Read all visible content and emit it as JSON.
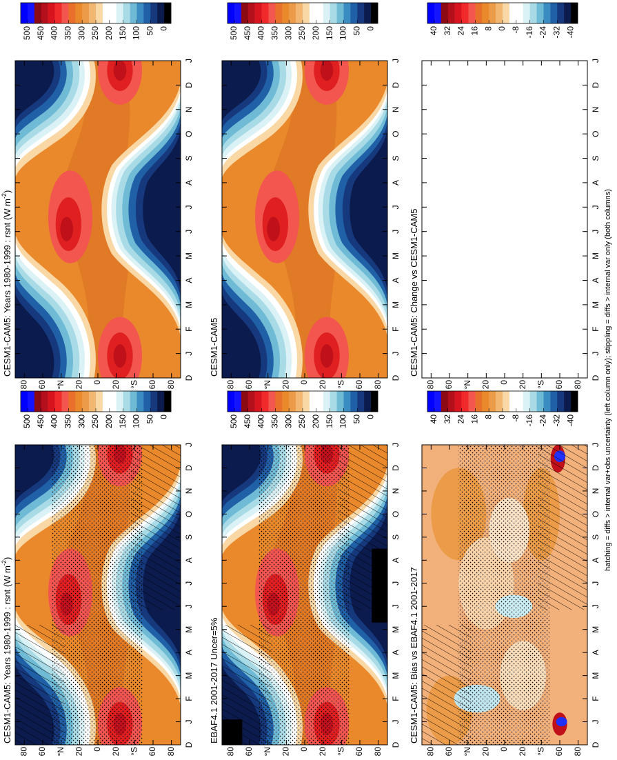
{
  "footnote": "hatching = diffs > internal var+obs uncertainty (left column only); stippling = diffs > internal var only (both columns)",
  "colors": [
    "#0000ff",
    "#1414ff",
    "#8b0a14",
    "#b3101c",
    "#d8151f",
    "#f02a2a",
    "#f2564e",
    "#e8702a",
    "#e9892c",
    "#ec9c48",
    "#f2b872",
    "#f9d8a6",
    "#ffffff",
    "#ffffff",
    "#daf1f6",
    "#a9dbe7",
    "#6fbbd6",
    "#3b8cc1",
    "#2060a6",
    "#16397e",
    "#0c1b4e",
    "#000000"
  ],
  "chart_data": [
    {
      "type": "contour",
      "title": "CESM1-CAM5: Years 1980-1999 : rsnt (W m",
      "title_sup": "-2",
      "title_end": ")",
      "hatching": true,
      "categories": [
        "D",
        "J",
        "F",
        "M",
        "A",
        "M",
        "J",
        "J",
        "A",
        "S",
        "O",
        "N",
        "D",
        "J"
      ],
      "ylim": [
        -90,
        90
      ],
      "yticks": [
        80,
        60,
        {
          "value": 40,
          "label": "°N"
        },
        20,
        0,
        {
          "value": -20,
          "label": "20"
        },
        {
          "value": -40,
          "label": "°S"
        },
        {
          "value": -60,
          "label": "60"
        },
        {
          "value": -80,
          "label": "80"
        }
      ],
      "colorbar": [
        500,
        450,
        400,
        350,
        300,
        250,
        200,
        150,
        100,
        50,
        0
      ]
    },
    {
      "type": "contour",
      "title": "CESM1-CAM5: Years 1980-1999 : rsnt (W m",
      "title_sup": "-2",
      "title_end": ")",
      "hatching": false,
      "categories": [
        "D",
        "J",
        "F",
        "M",
        "A",
        "M",
        "J",
        "J",
        "A",
        "S",
        "O",
        "N",
        "D",
        "J"
      ],
      "ylim": [
        -90,
        90
      ],
      "yticks": [
        80,
        60,
        {
          "value": 40,
          "label": "°N"
        },
        20,
        0,
        {
          "value": -20,
          "label": "20"
        },
        {
          "value": -40,
          "label": "°S"
        },
        {
          "value": -60,
          "label": "60"
        },
        {
          "value": -80,
          "label": "80"
        }
      ],
      "colorbar": [
        500,
        450,
        400,
        350,
        300,
        250,
        200,
        150,
        100,
        50,
        0
      ]
    },
    {
      "type": "contour",
      "title": "EBAF4.1 2001-2017 Uncer=5%",
      "hatching": true,
      "categories": [
        "D",
        "J",
        "F",
        "M",
        "A",
        "M",
        "J",
        "J",
        "A",
        "S",
        "O",
        "N",
        "D",
        "J"
      ],
      "ylim": [
        -90,
        90
      ],
      "yticks": [
        80,
        60,
        {
          "value": 40,
          "label": "°N"
        },
        20,
        0,
        {
          "value": -20,
          "label": "20"
        },
        {
          "value": -40,
          "label": "°S"
        },
        {
          "value": -60,
          "label": "60"
        },
        {
          "value": -80,
          "label": "80"
        }
      ],
      "colorbar": [
        500,
        450,
        400,
        350,
        300,
        250,
        200,
        150,
        100,
        50,
        0
      ]
    },
    {
      "type": "contour",
      "title": "CESM1-CAM5",
      "hatching": false,
      "categories": [
        "D",
        "J",
        "F",
        "M",
        "A",
        "M",
        "J",
        "J",
        "A",
        "S",
        "O",
        "N",
        "D",
        "J"
      ],
      "ylim": [
        -90,
        90
      ],
      "yticks": [
        80,
        60,
        {
          "value": 40,
          "label": "°N"
        },
        20,
        0,
        {
          "value": -20,
          "label": "20"
        },
        {
          "value": -40,
          "label": "°S"
        },
        {
          "value": -60,
          "label": "60"
        },
        {
          "value": -80,
          "label": "80"
        }
      ],
      "colorbar": [
        500,
        450,
        400,
        350,
        300,
        250,
        200,
        150,
        100,
        50,
        0
      ]
    },
    {
      "type": "contour",
      "title": "CESM1-CAM5: Bias vs EBAF4.1 2001-2017",
      "hatching": true,
      "categories": [
        "D",
        "J",
        "F",
        "M",
        "A",
        "M",
        "J",
        "J",
        "A",
        "S",
        "O",
        "N",
        "D",
        "J"
      ],
      "ylim": [
        -90,
        90
      ],
      "yticks": [
        80,
        60,
        {
          "value": 40,
          "label": "°N"
        },
        20,
        0,
        {
          "value": -20,
          "label": "20"
        },
        {
          "value": -40,
          "label": "°S"
        },
        {
          "value": -60,
          "label": "60"
        },
        {
          "value": -80,
          "label": "80"
        }
      ],
      "colorbar": [
        40,
        32,
        24,
        16,
        8,
        0,
        -8,
        -16,
        -24,
        -32,
        -40
      ]
    },
    {
      "type": "contour",
      "title": "CESM1-CAM5: Change vs CESM1-CAM5",
      "hatching": false,
      "categories": [
        "D",
        "J",
        "F",
        "M",
        "A",
        "M",
        "J",
        "J",
        "A",
        "S",
        "O",
        "N",
        "D",
        "J"
      ],
      "ylim": [
        -90,
        90
      ],
      "yticks": [
        80,
        60,
        {
          "value": 40,
          "label": "°N"
        },
        20,
        0,
        {
          "value": -20,
          "label": "20"
        },
        {
          "value": -40,
          "label": "°S"
        },
        {
          "value": -60,
          "label": "60"
        },
        {
          "value": -80,
          "label": "80"
        }
      ],
      "colorbar": [
        40,
        32,
        24,
        16,
        8,
        0,
        -8,
        -16,
        -24,
        -32,
        -40
      ]
    }
  ]
}
